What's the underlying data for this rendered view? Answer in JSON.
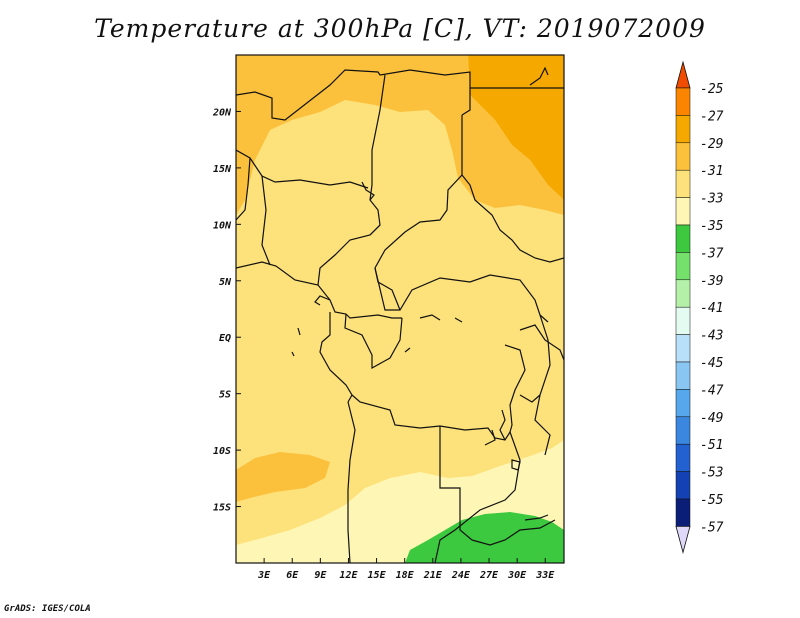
{
  "title": "Temperature at 300hPa [C], VT: 2019072009",
  "credit": "GrADS: IGES/COLA",
  "map": {
    "lon_range": [
      0,
      35
    ],
    "lat_range": [
      -20,
      25
    ],
    "x_ticks": [
      "3E",
      "6E",
      "9E",
      "12E",
      "15E",
      "18E",
      "21E",
      "24E",
      "27E",
      "30E",
      "33E"
    ],
    "y_ticks": [
      "20N",
      "15N",
      "10N",
      "5N",
      "EQ",
      "5S",
      "10S",
      "15S"
    ],
    "colors": {
      "c27_29": "#f5a800",
      "c29_31": "#fbc13c",
      "c31_33": "#fde17a",
      "c33_35": "#fef6b4",
      "c35_37": "#3dc93f",
      "background": "#fde17a"
    }
  },
  "colorbar": {
    "labels": [
      "-25",
      "-27",
      "-29",
      "-31",
      "-33",
      "-35",
      "-37",
      "-39",
      "-41",
      "-43",
      "-45",
      "-47",
      "-49",
      "-51",
      "-53",
      "-55",
      "-57"
    ],
    "colors": [
      "#f24c00",
      "#fb8400",
      "#f5a800",
      "#fbc13c",
      "#fde17a",
      "#fef6b4",
      "#3dc93f",
      "#76e06d",
      "#b5f0a8",
      "#e3fbf0",
      "#b8e0f8",
      "#8ac6f2",
      "#56a8ec",
      "#3b87e0",
      "#2360d0",
      "#1442b4",
      "#0a1e78",
      "#e0d8f8"
    ]
  }
}
